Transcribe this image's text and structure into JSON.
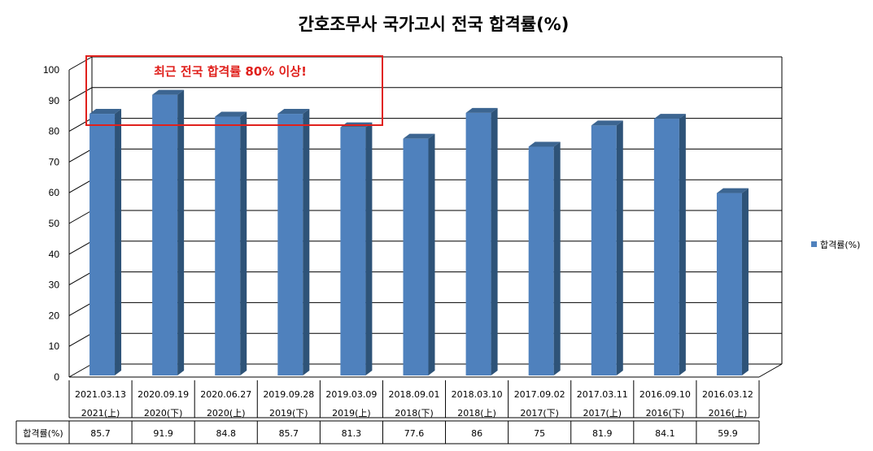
{
  "chart_data": {
    "type": "bar",
    "title": "간호조무사 국가고시 전국 합격률(%)",
    "categories": [
      [
        "2021.03.13",
        "2021(上)"
      ],
      [
        "2020.09.19",
        "2020(下)"
      ],
      [
        "2020.06.27",
        "2020(上)"
      ],
      [
        "2019.09.28",
        "2019(下)"
      ],
      [
        "2019.03.09",
        "2019(上)"
      ],
      [
        "2018.09.01",
        "2018(下)"
      ],
      [
        "2018.03.10",
        "2018(上)"
      ],
      [
        "2017.09.02",
        "2017(下)"
      ],
      [
        "2017.03.11",
        "2017(上)"
      ],
      [
        "2016.09.10",
        "2016(下)"
      ],
      [
        "2016.03.12",
        "2016(上)"
      ]
    ],
    "series": [
      {
        "name": "합격률(%)",
        "values": [
          85.7,
          91.9,
          84.8,
          85.7,
          81.3,
          77.6,
          86,
          75,
          81.9,
          84.1,
          59.9
        ],
        "value_labels": [
          "85.7",
          "91.9",
          "84.8",
          "85.7",
          "81.3",
          "77.6",
          "86",
          "75",
          "81.9",
          "84.1",
          "59.9"
        ]
      }
    ],
    "ylim": [
      0,
      100
    ],
    "yticks": [
      0,
      10,
      20,
      30,
      40,
      50,
      60,
      70,
      80,
      90,
      100
    ],
    "grid": true,
    "legend_position": "right",
    "data_table": true,
    "annotation": "최근 전국 합격률 80% 이상!",
    "colors": {
      "bar_front": "#4f81bd",
      "bar_side": "#2e5378",
      "bar_top": "#3c6591",
      "annotation": "#e0201c",
      "grid": "#000000"
    }
  }
}
